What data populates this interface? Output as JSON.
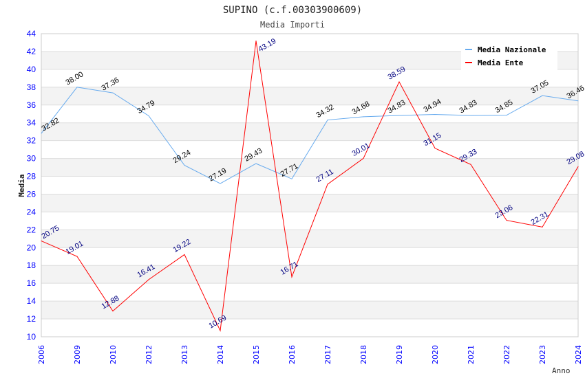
{
  "chart_data": {
    "type": "line",
    "title": "SUPINO (c.f.00303900609)",
    "subtitle": "Media Importi",
    "xlabel": "Anno",
    "ylabel": "Media",
    "ylim": [
      10,
      44
    ],
    "yticks": [
      10,
      12,
      14,
      16,
      18,
      20,
      22,
      24,
      26,
      28,
      30,
      32,
      34,
      36,
      38,
      40,
      42,
      44
    ],
    "categories": [
      "2006",
      "2009",
      "2010",
      "2012",
      "2013",
      "2014",
      "2015",
      "2016",
      "2017",
      "2018",
      "2019",
      "2020",
      "2021",
      "2022",
      "2023",
      "2024"
    ],
    "grid": true,
    "legend_position": "top-right",
    "series": [
      {
        "name": "Media Nazionale",
        "color": "#66aaee",
        "label_color": "#000000",
        "values": [
          32.82,
          38.0,
          37.36,
          34.79,
          29.24,
          27.19,
          29.43,
          27.71,
          34.32,
          34.68,
          34.83,
          34.94,
          34.83,
          34.85,
          37.05,
          36.46
        ]
      },
      {
        "name": "Media Ente",
        "color": "#ff0000",
        "label_color": "#000080",
        "values": [
          20.75,
          19.01,
          12.88,
          16.41,
          19.22,
          10.69,
          43.19,
          16.71,
          27.11,
          30.01,
          38.59,
          31.15,
          29.33,
          23.06,
          22.31,
          29.08
        ]
      }
    ]
  }
}
